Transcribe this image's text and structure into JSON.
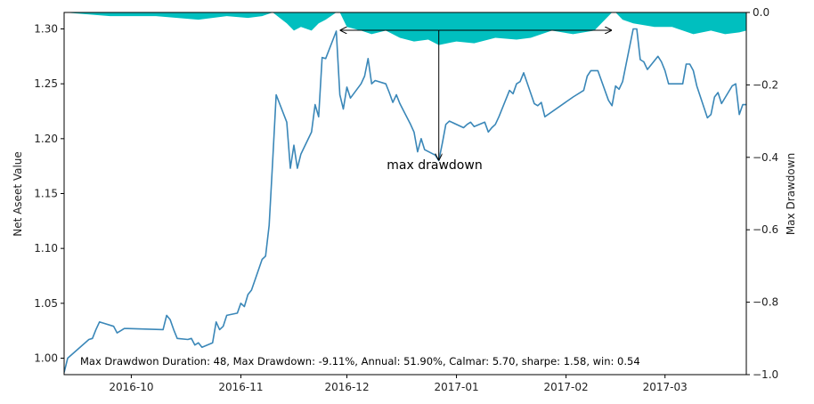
{
  "chart_data": {
    "type": "line",
    "title": "",
    "xlabel": "",
    "ylabel": "Net Aseet Value",
    "y2label": "Max Drawdown",
    "xlim": [
      "2016-09-12",
      "2017-03-24"
    ],
    "ylim": [
      0.985,
      1.315
    ],
    "y2lim": [
      -1.0,
      0.0
    ],
    "grid": false,
    "x_ticks": [
      {
        "date": "2016-10-01",
        "label": "2016-10"
      },
      {
        "date": "2016-11-01",
        "label": "2016-11"
      },
      {
        "date": "2016-12-01",
        "label": "2016-12"
      },
      {
        "date": "2017-01-01",
        "label": "2017-01"
      },
      {
        "date": "2017-02-01",
        "label": "2017-02"
      },
      {
        "date": "2017-03-01",
        "label": "2017-03"
      }
    ],
    "y_ticks": [
      {
        "value": 1.0,
        "label": "1.00"
      },
      {
        "value": 1.05,
        "label": "1.05"
      },
      {
        "value": 1.1,
        "label": "1.10"
      },
      {
        "value": 1.15,
        "label": "1.15"
      },
      {
        "value": 1.2,
        "label": "1.20"
      },
      {
        "value": 1.25,
        "label": "1.25"
      },
      {
        "value": 1.3,
        "label": "1.30"
      }
    ],
    "y2_ticks": [
      {
        "value": 0.0,
        "label": "0.0"
      },
      {
        "value": -0.2,
        "label": "−0.2"
      },
      {
        "value": -0.4,
        "label": "−0.4"
      },
      {
        "value": -0.6,
        "label": "−0.6"
      },
      {
        "value": -0.8,
        "label": "−0.8"
      },
      {
        "value": -1.0,
        "label": "−1.0"
      }
    ],
    "colors": {
      "line": "#3a87b8",
      "drawdown_fill": "#00bfbf",
      "annotation": "#000000"
    },
    "series": [
      {
        "name": "",
        "x": [
          "2016-09-12",
          "2016-09-13",
          "2016-09-19",
          "2016-09-20",
          "2016-09-21",
          "2016-09-22",
          "2016-09-23",
          "2016-09-26",
          "2016-09-27",
          "2016-09-28",
          "2016-09-29",
          "2016-09-30",
          "2016-10-10",
          "2016-10-11",
          "2016-10-12",
          "2016-10-13",
          "2016-10-14",
          "2016-10-17",
          "2016-10-18",
          "2016-10-19",
          "2016-10-20",
          "2016-10-21",
          "2016-10-24",
          "2016-10-25",
          "2016-10-26",
          "2016-10-27",
          "2016-10-28",
          "2016-10-31",
          "2016-11-01",
          "2016-11-02",
          "2016-11-03",
          "2016-11-04",
          "2016-11-07",
          "2016-11-08",
          "2016-11-09",
          "2016-11-10",
          "2016-11-11",
          "2016-11-14",
          "2016-11-15",
          "2016-11-16",
          "2016-11-17",
          "2016-11-18",
          "2016-11-21",
          "2016-11-22",
          "2016-11-23",
          "2016-11-24",
          "2016-11-25",
          "2016-11-28",
          "2016-11-29",
          "2016-11-30",
          "2016-12-01",
          "2016-12-02",
          "2016-12-05",
          "2016-12-06",
          "2016-12-07",
          "2016-12-08",
          "2016-12-09",
          "2016-12-12",
          "2016-12-13",
          "2016-12-14",
          "2016-12-15",
          "2016-12-16",
          "2016-12-19",
          "2016-12-20",
          "2016-12-21",
          "2016-12-22",
          "2016-12-23",
          "2016-12-26",
          "2016-12-27",
          "2016-12-28",
          "2016-12-29",
          "2016-12-30",
          "2017-01-03",
          "2017-01-04",
          "2017-01-05",
          "2017-01-06",
          "2017-01-09",
          "2017-01-10",
          "2017-01-11",
          "2017-01-12",
          "2017-01-13",
          "2017-01-16",
          "2017-01-17",
          "2017-01-18",
          "2017-01-19",
          "2017-01-20",
          "2017-01-23",
          "2017-01-24",
          "2017-01-25",
          "2017-01-26",
          "2017-02-03",
          "2017-02-06",
          "2017-02-07",
          "2017-02-08",
          "2017-02-09",
          "2017-02-10",
          "2017-02-13",
          "2017-02-14",
          "2017-02-15",
          "2017-02-16",
          "2017-02-17",
          "2017-02-20",
          "2017-02-21",
          "2017-02-22",
          "2017-02-23",
          "2017-02-24",
          "2017-02-27",
          "2017-02-28",
          "2017-03-01",
          "2017-03-02",
          "2017-03-03",
          "2017-03-06",
          "2017-03-07",
          "2017-03-08",
          "2017-03-09",
          "2017-03-10",
          "2017-03-13",
          "2017-03-14",
          "2017-03-15",
          "2017-03-16",
          "2017-03-17",
          "2017-03-20",
          "2017-03-21",
          "2017-03-22",
          "2017-03-23",
          "2017-03-24"
        ],
        "values": [
          0.987,
          1.0,
          1.017,
          1.018,
          1.026,
          1.033,
          1.032,
          1.029,
          1.023,
          1.025,
          1.027,
          1.027,
          1.026,
          1.039,
          1.035,
          1.026,
          1.018,
          1.017,
          1.018,
          1.012,
          1.014,
          1.01,
          1.014,
          1.033,
          1.026,
          1.029,
          1.039,
          1.041,
          1.05,
          1.047,
          1.058,
          1.062,
          1.09,
          1.093,
          1.121,
          1.18,
          1.24,
          1.215,
          1.173,
          1.194,
          1.173,
          1.186,
          1.206,
          1.231,
          1.22,
          1.274,
          1.273,
          1.298,
          1.24,
          1.227,
          1.247,
          1.237,
          1.25,
          1.257,
          1.273,
          1.25,
          1.253,
          1.25,
          1.242,
          1.233,
          1.24,
          1.232,
          1.213,
          1.206,
          1.188,
          1.2,
          1.19,
          1.185,
          1.18,
          1.196,
          1.213,
          1.216,
          1.21,
          1.213,
          1.215,
          1.211,
          1.215,
          1.206,
          1.21,
          1.213,
          1.22,
          1.244,
          1.241,
          1.25,
          1.252,
          1.26,
          1.232,
          1.23,
          1.233,
          1.22,
          1.238,
          1.244,
          1.257,
          1.262,
          1.262,
          1.262,
          1.235,
          1.23,
          1.248,
          1.245,
          1.252,
          1.3,
          1.3,
          1.272,
          1.27,
          1.263,
          1.275,
          1.27,
          1.262,
          1.25,
          1.25,
          1.25,
          1.268,
          1.268,
          1.262,
          1.248,
          1.219,
          1.222,
          1.238,
          1.242,
          1.232,
          1.248,
          1.25,
          1.222,
          1.231,
          1.231
        ]
      },
      {
        "name": "",
        "axis": "right",
        "type": "area",
        "x": [
          "2016-09-12",
          "2016-09-25",
          "2016-10-08",
          "2016-10-20",
          "2016-10-28",
          "2016-11-03",
          "2016-11-07",
          "2016-11-10",
          "2016-11-14",
          "2016-11-16",
          "2016-11-18",
          "2016-11-21",
          "2016-11-23",
          "2016-11-25",
          "2016-11-28",
          "2016-11-29",
          "2016-12-01",
          "2016-12-05",
          "2016-12-08",
          "2016-12-12",
          "2016-12-16",
          "2016-12-20",
          "2016-12-24",
          "2016-12-27",
          "2017-01-01",
          "2017-01-06",
          "2017-01-12",
          "2017-01-18",
          "2017-01-22",
          "2017-01-28",
          "2017-02-03",
          "2017-02-09",
          "2017-02-14",
          "2017-02-15",
          "2017-02-17",
          "2017-02-20",
          "2017-02-26",
          "2017-03-03",
          "2017-03-09",
          "2017-03-14",
          "2017-03-18",
          "2017-03-22",
          "2017-03-24"
        ],
        "values": [
          0.0,
          -0.01,
          -0.01,
          -0.02,
          -0.01,
          -0.015,
          -0.01,
          0.0,
          -0.03,
          -0.05,
          -0.04,
          -0.05,
          -0.03,
          -0.02,
          0.0,
          0.0,
          -0.04,
          -0.05,
          -0.06,
          -0.05,
          -0.07,
          -0.08,
          -0.075,
          -0.09,
          -0.08,
          -0.085,
          -0.07,
          -0.075,
          -0.07,
          -0.05,
          -0.06,
          -0.05,
          0.0,
          0.0,
          -0.02,
          -0.03,
          -0.04,
          -0.04,
          -0.06,
          -0.05,
          -0.06,
          -0.055,
          -0.05
        ]
      }
    ],
    "annotations": [
      {
        "text": "max drawdown",
        "x": "2016-12-27",
        "y": 1.168
      },
      {
        "text": "Max Drawdwon Duration: 48, Max Drawdown: -9.11%, Annual: 51.90%, Calmar: 5.70, sharpe: 1.58, win: 0.54"
      }
    ],
    "drawdown_markers": {
      "peak": {
        "x": "2016-11-29",
        "y": 1.298
      },
      "trough": {
        "x": "2016-12-27",
        "y": 1.18
      },
      "recovery": {
        "x": "2017-02-14",
        "y": 1.298
      }
    }
  }
}
